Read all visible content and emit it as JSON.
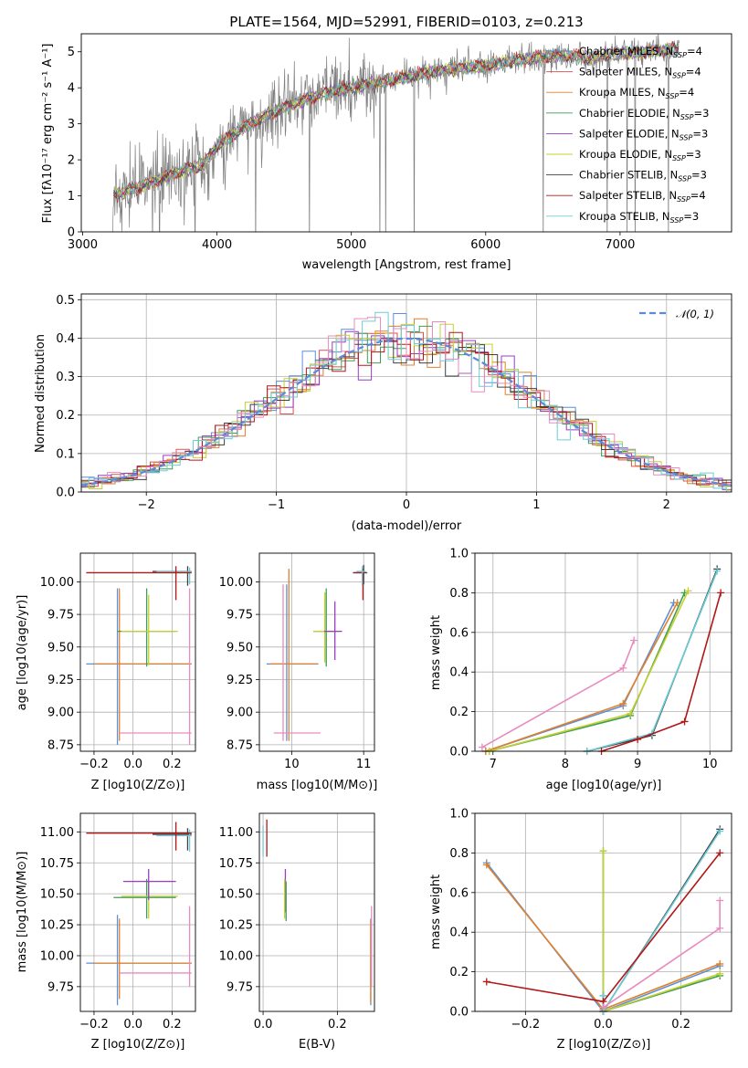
{
  "title": "PLATE=1564, MJD=52991, FIBERID=0103, z=0.213",
  "colors": {
    "data": "#808080",
    "chabrier_miles": "#5c8fd4",
    "salpeter_miles": "#e05050",
    "kroupa_miles": "#e0802c",
    "chabrier_elodie": "#3f9e55",
    "salpeter_elodie": "#9a3cc8",
    "kroupa_elodie": "#c6d030",
    "chabrier_stelib": "#404040",
    "salpeter_stelib": "#b01818",
    "kroupa_stelib": "#6cccd8",
    "normal": "#5a8ad8",
    "pink": "#e98ac0"
  },
  "chart_data": [
    {
      "type": "line",
      "panel": "spectrum",
      "title": "PLATE=1564, MJD=52991, FIBERID=0103, z=0.213",
      "xlabel": "wavelength [Angstrom, rest frame]",
      "ylabel": "Flux [fλ10⁻¹⁷ erg cm⁻² s⁻¹ A⁻¹]",
      "xlim": [
        2990,
        7830
      ],
      "ylim": [
        0,
        5.5
      ],
      "xticks": [
        3000,
        4000,
        5000,
        6000,
        7000
      ],
      "yticks": [
        0,
        1,
        2,
        3,
        4,
        5
      ],
      "continuum_x": [
        3220,
        3500,
        3700,
        3900,
        4000,
        4200,
        4400,
        4600,
        4800,
        5000,
        5200,
        5400,
        5600,
        5800,
        6000,
        6200,
        6400,
        6600,
        6800,
        7000,
        7200,
        7400
      ],
      "continuum_y": [
        1.0,
        1.35,
        1.65,
        1.85,
        2.4,
        2.9,
        3.3,
        3.6,
        3.85,
        4.0,
        4.15,
        4.3,
        4.45,
        4.55,
        4.6,
        4.75,
        4.85,
        4.9,
        4.85,
        4.95,
        5.0,
        5.05
      ],
      "legend": [
        {
          "label": "Chabrier MILES, N",
          "sub": "SSP",
          "suffix": "=4"
        },
        {
          "label": "Salpeter MILES, N",
          "sub": "SSP",
          "suffix": "=4"
        },
        {
          "label": "Kroupa MILES, N",
          "sub": "SSP",
          "suffix": "=4"
        },
        {
          "label": "Chabrier ELODIE, N",
          "sub": "SSP",
          "suffix": "=3"
        },
        {
          "label": "Salpeter ELODIE, N",
          "sub": "SSP",
          "suffix": "=3"
        },
        {
          "label": "Kroupa ELODIE, N",
          "sub": "SSP",
          "suffix": "=3"
        },
        {
          "label": "Chabrier STELIB, N",
          "sub": "SSP",
          "suffix": "=3"
        },
        {
          "label": "Salpeter STELIB, N",
          "sub": "SSP",
          "suffix": "=4"
        },
        {
          "label": "Kroupa STELIB, N",
          "sub": "SSP",
          "suffix": "=3"
        }
      ],
      "legend_placement": "upper right"
    },
    {
      "type": "line",
      "panel": "residual_histogram",
      "xlabel": "(data-model)/error",
      "ylabel": "Normed distribution",
      "xlim": [
        -2.5,
        2.5
      ],
      "ylim": [
        0,
        0.515
      ],
      "xticks": [
        -2,
        -1,
        0,
        1,
        2
      ],
      "yticks": [
        0.0,
        0.1,
        0.2,
        0.3,
        0.4,
        0.5
      ],
      "grid": true,
      "bin_width": 0.1,
      "legend": "𝒩(0, 1)",
      "legend_placement": "upper right"
    },
    {
      "type": "scatter",
      "panel": "age_vs_Z",
      "xlabel": "Z [log10(Z/Z⊙)]",
      "ylabel": "age  [log10(age/yr)]",
      "xlim": [
        -0.27,
        0.32
      ],
      "ylim": [
        8.7,
        10.22
      ],
      "xticks": [
        -0.2,
        0.0,
        0.2
      ],
      "yticks": [
        8.75,
        9.0,
        9.25,
        9.5,
        9.75,
        10.0
      ],
      "grid": true
    },
    {
      "type": "scatter",
      "panel": "age_vs_mass",
      "xlabel": "mass [log10(M/M⊙)]",
      "xlim": [
        9.55,
        11.15
      ],
      "ylim": [
        8.7,
        10.22
      ],
      "xticks": [
        10,
        11
      ],
      "yticks": [
        8.75,
        9.0,
        9.25,
        9.5,
        9.75,
        10.0
      ],
      "grid": true
    },
    {
      "type": "line",
      "panel": "massweight_vs_age",
      "xlabel": "age  [log10(age/yr)]",
      "ylabel": "mass weight",
      "xlim": [
        6.75,
        10.3
      ],
      "ylim": [
        0,
        1.0
      ],
      "xticks": [
        7,
        8,
        9,
        10
      ],
      "yticks": [
        0.0,
        0.2,
        0.4,
        0.6,
        0.8,
        1.0
      ],
      "grid": true,
      "series": [
        {
          "color": "chabrier_miles",
          "x": [
            6.9,
            8.8,
            9.5
          ],
          "y": [
            0.0,
            0.23,
            0.75
          ]
        },
        {
          "color": "kroupa_miles",
          "x": [
            6.9,
            8.8,
            9.55
          ],
          "y": [
            0.0,
            0.24,
            0.75
          ]
        },
        {
          "color": "chabrier_elodie",
          "x": [
            6.95,
            8.9,
            9.65
          ],
          "y": [
            0.0,
            0.18,
            0.8
          ]
        },
        {
          "color": "kroupa_elodie",
          "x": [
            6.95,
            8.9,
            9.7
          ],
          "y": [
            0.0,
            0.19,
            0.81
          ]
        },
        {
          "color": "chabrier_stelib",
          "x": [
            8.3,
            9.2,
            10.1
          ],
          "y": [
            0.0,
            0.08,
            0.92
          ]
        },
        {
          "color": "kroupa_stelib",
          "x": [
            8.3,
            9.2,
            10.1
          ],
          "y": [
            0.0,
            0.09,
            0.91
          ]
        },
        {
          "color": "salpeter_stelib",
          "x": [
            8.5,
            9.0,
            9.65,
            10.15
          ],
          "y": [
            0.0,
            0.06,
            0.15,
            0.8
          ]
        },
        {
          "color": "pink",
          "x": [
            6.85,
            8.8,
            8.95
          ],
          "y": [
            0.02,
            0.42,
            0.56
          ]
        }
      ]
    },
    {
      "type": "scatter",
      "panel": "mass_vs_Z",
      "xlabel": "Z [log10(Z/Z⊙)]",
      "ylabel": "mass [log10(M/M⊙)]",
      "xlim": [
        -0.27,
        0.32
      ],
      "ylim": [
        9.55,
        11.15
      ],
      "xticks": [
        -0.2,
        0.0,
        0.2
      ],
      "yticks": [
        9.75,
        10.0,
        10.25,
        10.5,
        10.75,
        11.0
      ],
      "grid": true
    },
    {
      "type": "scatter",
      "panel": "mass_vs_EBV",
      "xlabel": "E(B-V)",
      "xlim": [
        -0.01,
        0.3
      ],
      "ylim": [
        9.55,
        11.15
      ],
      "xticks": [
        0.0,
        0.2
      ],
      "yticks": [
        9.75,
        10.0,
        10.25,
        10.5,
        10.75,
        11.0
      ],
      "grid": true
    },
    {
      "type": "line",
      "panel": "massweight_vs_Z",
      "xlabel": "Z [log10(Z/Z⊙)]",
      "ylabel": "mass weight",
      "xlim": [
        -0.33,
        0.33
      ],
      "ylim": [
        0,
        1.0
      ],
      "xticks": [
        -0.2,
        0.0,
        0.2
      ],
      "yticks": [
        0.0,
        0.2,
        0.4,
        0.6,
        0.8,
        1.0
      ],
      "grid": true,
      "series": [
        {
          "color": "chabrier_miles",
          "x": [
            -0.3,
            0.0,
            0.3
          ],
          "y": [
            0.75,
            0.0,
            0.23
          ]
        },
        {
          "color": "kroupa_miles",
          "x": [
            -0.3,
            0.0,
            0.3
          ],
          "y": [
            0.74,
            0.01,
            0.24
          ]
        },
        {
          "color": "chabrier_elodie",
          "x": [
            0.0,
            0.0,
            0.3
          ],
          "y": [
            0.81,
            0.0,
            0.18
          ]
        },
        {
          "color": "kroupa_elodie",
          "x": [
            0.0,
            0.0,
            0.3
          ],
          "y": [
            0.81,
            0.0,
            0.19
          ]
        },
        {
          "color": "chabrier_stelib",
          "x": [
            0.0,
            0.0,
            0.3
          ],
          "y": [
            0.08,
            0.0,
            0.92
          ]
        },
        {
          "color": "kroupa_stelib",
          "x": [
            0.0,
            0.0,
            0.3
          ],
          "y": [
            0.08,
            0.0,
            0.91
          ]
        },
        {
          "color": "salpeter_stelib",
          "x": [
            -0.3,
            0.0,
            0.3
          ],
          "y": [
            0.15,
            0.05,
            0.8
          ]
        },
        {
          "color": "pink",
          "x": [
            0.0,
            0.3,
            0.3
          ],
          "y": [
            0.02,
            0.42,
            0.56
          ]
        }
      ]
    }
  ]
}
